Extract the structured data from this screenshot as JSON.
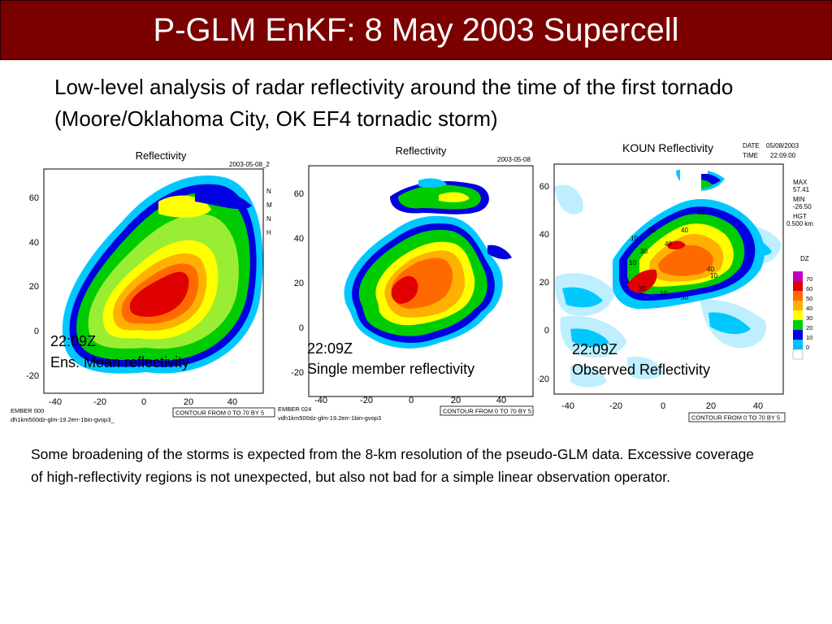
{
  "slide": {
    "title": "P-GLM EnKF: 8 May 2003 Supercell",
    "subtitle": "Low-level analysis of radar reflectivity around the time of the first tornado (Moore/Oklahoma City, OK EF4 tornadic storm)",
    "caption": "Some broadening of the storms is expected from the 8-km resolution of the pseudo-GLM data. Excessive coverage of high-reflectivity regions is not unexpected, but also not bad for a simple linear observation operator.",
    "colors": {
      "title_bg": "#7b0000",
      "title_text": "#ffffff"
    }
  },
  "panels": [
    {
      "plot_title": "Reflectivity",
      "corner_date": "2003-05-08_2",
      "time_label": "22:09Z",
      "desc_label": "Ens. Mean reflectivity",
      "member_label": "EMBER 000",
      "file_label": "dh1km500dz-glm-19.2err-1bin-gvop3_",
      "contour_note": "CONTOUR FROM 0 TO 70 BY 5",
      "side_letters": [
        "N",
        "M",
        "N",
        "H"
      ],
      "xticks": [
        "-40",
        "-20",
        "0",
        "20",
        "40"
      ],
      "yticks": [
        "60",
        "40",
        "20",
        "0",
        "-20"
      ]
    },
    {
      "plot_title": "Reflectivity",
      "corner_date": "2003-05-08",
      "time_label": "22:09Z",
      "desc_label": "Single member reflectivity",
      "member_label": "EMBER 024",
      "file_label": "vdh1km500dz-glm-19.2err-1bin-gvop3",
      "contour_note": "CONTOUR FROM 0 TO 70 BY 5",
      "xticks": [
        "-40",
        "-20",
        "0",
        "20",
        "40"
      ],
      "yticks": [
        "60",
        "40",
        "20",
        "0",
        "-20"
      ]
    },
    {
      "plot_title": "KOUN Reflectivity",
      "date_label": "DATE",
      "date_value": "05/08/2003",
      "time_title": "TIME",
      "time_value": "22:09:00",
      "stats": {
        "max_label": "MAX",
        "max_value": "57.41",
        "min_label": "MIN",
        "min_value": "-26.50",
        "hgt_label": "HGT",
        "hgt_value": "0.500 km"
      },
      "colorbar_title": "DZ",
      "colorbar_labels": [
        "70",
        "60",
        "50",
        "40",
        "30",
        "20",
        "10",
        "0"
      ],
      "colorbar_colors": [
        "#c000c0",
        "#e00000",
        "#ff6a00",
        "#ffb000",
        "#ffff00",
        "#00d000",
        "#0000e0",
        "#00c0ff",
        "#ffffff"
      ],
      "contour_labels": [
        "30",
        "40",
        "10",
        "20",
        "40",
        "30",
        "10",
        "10",
        "30",
        "40",
        "20",
        "10"
      ],
      "time_label": "22:09Z",
      "desc_label": "Observed Reflectivity",
      "contour_note": "CONTOUR FROM 0 TO 70 BY 5",
      "xticks": [
        "-40",
        "-20",
        "0",
        "20",
        "40"
      ],
      "yticks": [
        "60",
        "40",
        "20",
        "0",
        "-20"
      ]
    }
  ]
}
